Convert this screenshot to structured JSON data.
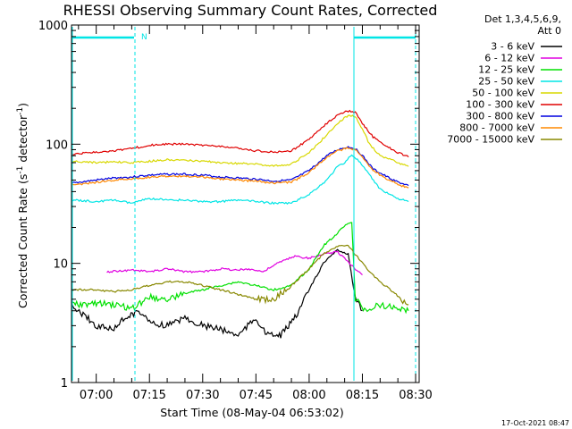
{
  "chart_data": {
    "type": "line",
    "title": "RHESSI Observing Summary Count Rates, Corrected",
    "xlabel": "Start Time (08-May-04 06:53:02)",
    "ylabel_parts": [
      "Corrected Count Rate (s",
      "-1",
      " detector",
      "-1",
      ")"
    ],
    "y_scale": "log",
    "ylim": [
      1,
      1000
    ],
    "xlim": [
      "06:53:02",
      "08:31:00"
    ],
    "y_ticks": [
      "1",
      "10",
      "100",
      "1000"
    ],
    "x_ticks": [
      "07:00",
      "07:15",
      "07:30",
      "07:45",
      "08:00",
      "08:15",
      "08:30"
    ],
    "legend_header": [
      "Det 1,3,4,5,6,9,",
      "Att 0"
    ],
    "legend_position": "outside-right",
    "timestamp": "17-Oct-2021 08:47",
    "marker_label": "N",
    "series": [
      {
        "name": "3 - 6 keV",
        "color": "#000000",
        "points": [
          [
            "06:53",
            4.5
          ],
          [
            "07:00",
            3.0
          ],
          [
            "07:05",
            2.8
          ],
          [
            "07:08",
            3.5
          ],
          [
            "07:12",
            4.0
          ],
          [
            "07:15",
            3.2
          ],
          [
            "07:20",
            3.0
          ],
          [
            "07:25",
            3.5
          ],
          [
            "07:30",
            3.0
          ],
          [
            "07:35",
            2.8
          ],
          [
            "07:40",
            2.5
          ],
          [
            "07:45",
            3.5
          ],
          [
            "07:48",
            2.5
          ],
          [
            "07:52",
            2.5
          ],
          [
            "07:56",
            3.5
          ],
          [
            "08:00",
            6.0
          ],
          [
            "08:04",
            10.0
          ],
          [
            "08:08",
            13.0
          ],
          [
            "08:11",
            12.0
          ],
          [
            "08:13",
            5.0
          ],
          [
            "08:15",
            4.0
          ]
        ]
      },
      {
        "name": "6 - 12 keV",
        "color": "#e000e0",
        "points": [
          [
            "07:03",
            8.5
          ],
          [
            "07:10",
            8.8
          ],
          [
            "07:15",
            8.5
          ],
          [
            "07:20",
            9.0
          ],
          [
            "07:25",
            8.5
          ],
          [
            "07:30",
            8.5
          ],
          [
            "07:35",
            9.0
          ],
          [
            "07:40",
            8.8
          ],
          [
            "07:43",
            9.0
          ],
          [
            "07:47",
            8.5
          ],
          [
            "07:51",
            10.0
          ],
          [
            "07:56",
            11.5
          ],
          [
            "08:00",
            11.0
          ],
          [
            "08:04",
            12.0
          ],
          [
            "08:08",
            12.5
          ],
          [
            "08:10",
            11.0
          ],
          [
            "08:13",
            9.0
          ],
          [
            "08:15",
            8.0
          ]
        ]
      },
      {
        "name": "12 - 25 keV",
        "color": "#00e000",
        "points": [
          [
            "06:53",
            4.5
          ],
          [
            "07:00",
            4.6
          ],
          [
            "07:05",
            4.5
          ],
          [
            "07:10",
            4.2
          ],
          [
            "07:15",
            5.2
          ],
          [
            "07:20",
            5.0
          ],
          [
            "07:25",
            5.6
          ],
          [
            "07:30",
            6.0
          ],
          [
            "07:35",
            6.5
          ],
          [
            "07:40",
            7.0
          ],
          [
            "07:45",
            6.5
          ],
          [
            "07:50",
            6.0
          ],
          [
            "07:55",
            6.5
          ],
          [
            "08:00",
            9.0
          ],
          [
            "08:04",
            14.0
          ],
          [
            "08:08",
            18.0
          ],
          [
            "08:11",
            22.0
          ],
          [
            "08:12",
            22.0
          ],
          [
            "08:13",
            5.0
          ],
          [
            "08:16",
            4.0
          ],
          [
            "08:20",
            4.5
          ],
          [
            "08:25",
            4.2
          ],
          [
            "08:28",
            4.0
          ]
        ]
      },
      {
        "name": "25 - 50 keV",
        "color": "#00e5e5",
        "points": [
          [
            "06:53",
            34
          ],
          [
            "07:00",
            33
          ],
          [
            "07:05",
            34
          ],
          [
            "07:10",
            32
          ],
          [
            "07:15",
            35
          ],
          [
            "07:20",
            34
          ],
          [
            "07:25",
            34
          ],
          [
            "07:30",
            33
          ],
          [
            "07:35",
            33
          ],
          [
            "07:40",
            34
          ],
          [
            "07:45",
            33
          ],
          [
            "07:50",
            32
          ],
          [
            "07:55",
            32
          ],
          [
            "08:00",
            38
          ],
          [
            "08:05",
            50
          ],
          [
            "08:08",
            65
          ],
          [
            "08:10",
            70
          ],
          [
            "08:12",
            82
          ],
          [
            "08:14",
            72
          ],
          [
            "08:17",
            55
          ],
          [
            "08:20",
            42
          ],
          [
            "08:25",
            35
          ],
          [
            "08:28",
            33
          ]
        ]
      },
      {
        "name": "50 - 100 keV",
        "color": "#d8d800",
        "points": [
          [
            "06:53",
            72
          ],
          [
            "07:00",
            70
          ],
          [
            "07:05",
            71
          ],
          [
            "07:10",
            70
          ],
          [
            "07:15",
            72
          ],
          [
            "07:20",
            74
          ],
          [
            "07:25",
            73
          ],
          [
            "07:30",
            72
          ],
          [
            "07:35",
            70
          ],
          [
            "07:40",
            69
          ],
          [
            "07:45",
            68
          ],
          [
            "07:50",
            66
          ],
          [
            "07:55",
            68
          ],
          [
            "08:00",
            85
          ],
          [
            "08:05",
            120
          ],
          [
            "08:08",
            150
          ],
          [
            "08:11",
            175
          ],
          [
            "08:13",
            170
          ],
          [
            "08:15",
            135
          ],
          [
            "08:17",
            100
          ],
          [
            "08:20",
            80
          ],
          [
            "08:25",
            70
          ],
          [
            "08:28",
            65
          ]
        ]
      },
      {
        "name": "100 - 300 keV",
        "color": "#e00000",
        "points": [
          [
            "06:53",
            82
          ],
          [
            "07:00",
            86
          ],
          [
            "07:05",
            88
          ],
          [
            "07:10",
            92
          ],
          [
            "07:15",
            98
          ],
          [
            "07:20",
            100
          ],
          [
            "07:25",
            100
          ],
          [
            "07:30",
            98
          ],
          [
            "07:35",
            96
          ],
          [
            "07:40",
            92
          ],
          [
            "07:45",
            88
          ],
          [
            "07:50",
            86
          ],
          [
            "07:55",
            88
          ],
          [
            "08:00",
            110
          ],
          [
            "08:05",
            150
          ],
          [
            "08:08",
            175
          ],
          [
            "08:11",
            190
          ],
          [
            "08:13",
            185
          ],
          [
            "08:15",
            150
          ],
          [
            "08:18",
            115
          ],
          [
            "08:22",
            95
          ],
          [
            "08:25",
            85
          ],
          [
            "08:28",
            78
          ]
        ]
      },
      {
        "name": "300 - 800 keV",
        "color": "#0000e0",
        "points": [
          [
            "06:53",
            47
          ],
          [
            "07:00",
            50
          ],
          [
            "07:05",
            52
          ],
          [
            "07:10",
            53
          ],
          [
            "07:15",
            55
          ],
          [
            "07:20",
            56
          ],
          [
            "07:25",
            56
          ],
          [
            "07:30",
            55
          ],
          [
            "07:35",
            53
          ],
          [
            "07:40",
            52
          ],
          [
            "07:45",
            51
          ],
          [
            "07:50",
            49
          ],
          [
            "07:55",
            50
          ],
          [
            "08:00",
            60
          ],
          [
            "08:05",
            80
          ],
          [
            "08:08",
            90
          ],
          [
            "08:11",
            95
          ],
          [
            "08:13",
            92
          ],
          [
            "08:15",
            80
          ],
          [
            "08:18",
            62
          ],
          [
            "08:22",
            53
          ],
          [
            "08:25",
            48
          ],
          [
            "08:28",
            45
          ]
        ]
      },
      {
        "name": "800 - 7000 keV",
        "color": "#ff8800",
        "points": [
          [
            "06:53",
            45
          ],
          [
            "07:00",
            48
          ],
          [
            "07:05",
            50
          ],
          [
            "07:10",
            51
          ],
          [
            "07:15",
            53
          ],
          [
            "07:20",
            54
          ],
          [
            "07:25",
            54
          ],
          [
            "07:30",
            53
          ],
          [
            "07:35",
            51
          ],
          [
            "07:40",
            50
          ],
          [
            "07:45",
            49
          ],
          [
            "07:50",
            47
          ],
          [
            "07:55",
            48
          ],
          [
            "08:00",
            58
          ],
          [
            "08:05",
            78
          ],
          [
            "08:08",
            88
          ],
          [
            "08:11",
            93
          ],
          [
            "08:13",
            90
          ],
          [
            "08:15",
            78
          ],
          [
            "08:18",
            60
          ],
          [
            "08:22",
            51
          ],
          [
            "08:25",
            46
          ],
          [
            "08:28",
            43
          ]
        ]
      },
      {
        "name": "7000 - 15000 keV",
        "color": "#888800",
        "points": [
          [
            "06:53",
            6.0
          ],
          [
            "07:00",
            6.0
          ],
          [
            "07:05",
            5.8
          ],
          [
            "07:10",
            6.0
          ],
          [
            "07:15",
            6.5
          ],
          [
            "07:20",
            7.0
          ],
          [
            "07:25",
            7.0
          ],
          [
            "07:30",
            6.5
          ],
          [
            "07:35",
            6.0
          ],
          [
            "07:40",
            5.5
          ],
          [
            "07:45",
            5.0
          ],
          [
            "07:50",
            5.0
          ],
          [
            "07:55",
            6.5
          ],
          [
            "08:00",
            9.0
          ],
          [
            "08:04",
            12.0
          ],
          [
            "08:08",
            14.0
          ],
          [
            "08:11",
            14.0
          ],
          [
            "08:14",
            11.0
          ],
          [
            "08:17",
            8.5
          ],
          [
            "08:20",
            7.0
          ],
          [
            "08:23",
            6.0
          ],
          [
            "08:26",
            5.0
          ],
          [
            "08:28",
            4.5
          ]
        ]
      }
    ]
  }
}
